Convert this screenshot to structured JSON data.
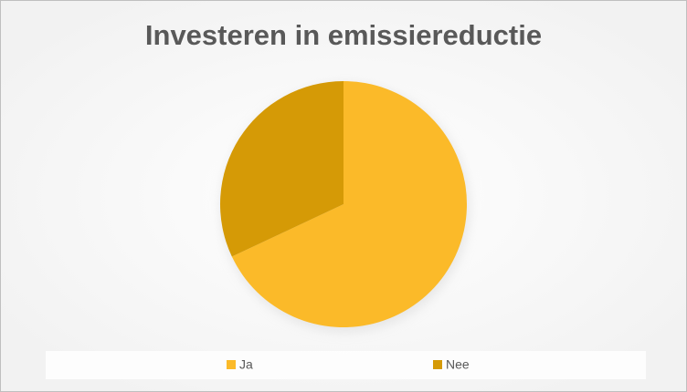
{
  "chart_data": {
    "type": "pie",
    "title": "Investeren in emissiereductie",
    "categories": [
      "Ja",
      "Nee"
    ],
    "values": [
      68,
      32
    ],
    "colors": [
      "#fbba29",
      "#d59a06"
    ],
    "legend": "bottom"
  }
}
